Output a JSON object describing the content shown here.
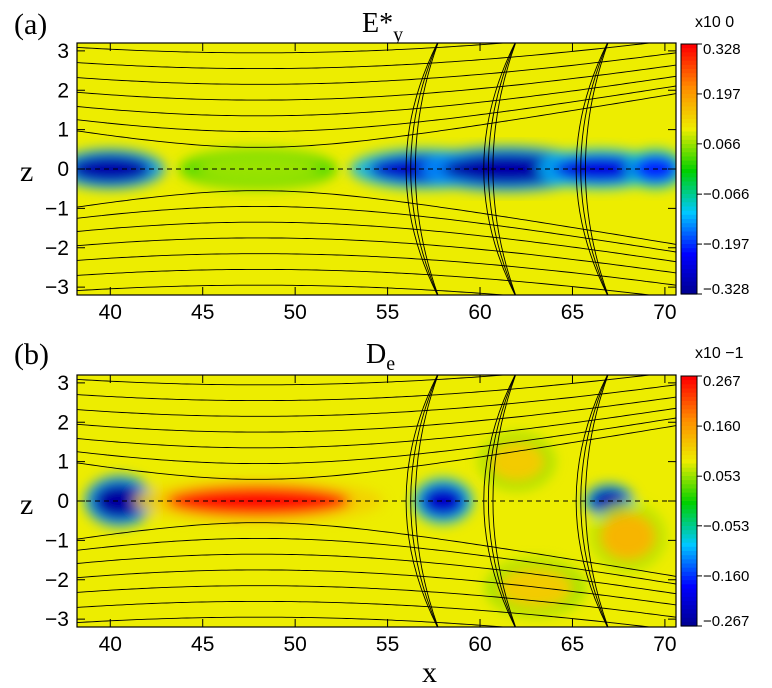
{
  "chart_data": [
    {
      "type": "heatmap",
      "panel_label": "(a)",
      "title_main": "E*",
      "title_sub": "y",
      "ylabel": "z",
      "xlim": [
        38.2,
        70.6
      ],
      "ylim": [
        -3.2,
        3.2
      ],
      "x_ticks": [
        "40",
        "45",
        "50",
        "55",
        "60",
        "65",
        "70"
      ],
      "y_ticks": [
        "3",
        "2",
        "1",
        "0",
        "−1",
        "−2",
        "−3"
      ],
      "colorbar_exponent": "x10  0",
      "colorbar_ticks": [
        "0.328",
        "0.197",
        "0.066",
        "−0.066",
        "−0.197",
        "−0.328"
      ],
      "colorbar_range": [
        -0.328,
        0.328
      ],
      "features": [
        {
          "x": 40.0,
          "z": 0.0,
          "wx": 2.2,
          "wz": 0.35,
          "value": -0.3
        },
        {
          "x": 48.0,
          "z": 0.0,
          "wx": 3.2,
          "wz": 0.35,
          "value": 0.07
        },
        {
          "x": 57.0,
          "z": 0.0,
          "wx": 3.0,
          "wz": 0.35,
          "value": -0.27
        },
        {
          "x": 61.5,
          "z": 0.0,
          "wx": 3.5,
          "wz": 0.4,
          "value": -0.3
        },
        {
          "x": 66.5,
          "z": 0.0,
          "wx": 2.5,
          "wz": 0.35,
          "value": -0.25
        },
        {
          "x": 69.5,
          "z": 0.0,
          "wx": 1.2,
          "wz": 0.35,
          "value": -0.2
        }
      ]
    },
    {
      "type": "heatmap",
      "panel_label": "(b)",
      "title_main": "D",
      "title_sub": "e",
      "ylabel": "z",
      "xlabel": "x",
      "xlim": [
        38.2,
        70.6
      ],
      "ylim": [
        -3.2,
        3.2
      ],
      "x_ticks": [
        "40",
        "45",
        "50",
        "55",
        "60",
        "65",
        "70"
      ],
      "y_ticks": [
        "3",
        "2",
        "1",
        "0",
        "−1",
        "−2",
        "−3"
      ],
      "colorbar_exponent": "x10  −1",
      "colorbar_ticks": [
        "0.267",
        "0.160",
        "0.053",
        "−0.053",
        "−0.160",
        "−0.267"
      ],
      "colorbar_range": [
        -0.267,
        0.267
      ],
      "features": [
        {
          "x": 40.5,
          "z": 0.0,
          "wx": 1.4,
          "wz": 0.45,
          "value": -0.25
        },
        {
          "x": 48.0,
          "z": 0.0,
          "wx": 5.0,
          "wz": 0.38,
          "value": 0.26
        },
        {
          "x": 58.0,
          "z": 0.0,
          "wx": 1.2,
          "wz": 0.4,
          "value": -0.22
        },
        {
          "x": 67.0,
          "z": 0.0,
          "wx": 1.0,
          "wz": 0.3,
          "value": -0.24
        },
        {
          "x": 62.0,
          "z": 1.0,
          "wx": 1.5,
          "wz": 0.5,
          "value": 0.12
        },
        {
          "x": 63.0,
          "z": -2.2,
          "wx": 2.0,
          "wz": 0.5,
          "value": 0.12
        },
        {
          "x": 68.0,
          "z": -0.9,
          "wx": 1.5,
          "wz": 0.6,
          "value": 0.14
        }
      ]
    }
  ],
  "colors": {
    "background": "#eded00",
    "colormap": [
      "#00008b",
      "#0000ff",
      "#00c8ff",
      "#00d000",
      "#eded00",
      "#ff8c00",
      "#ff0000"
    ],
    "field_lines": "#000000"
  }
}
